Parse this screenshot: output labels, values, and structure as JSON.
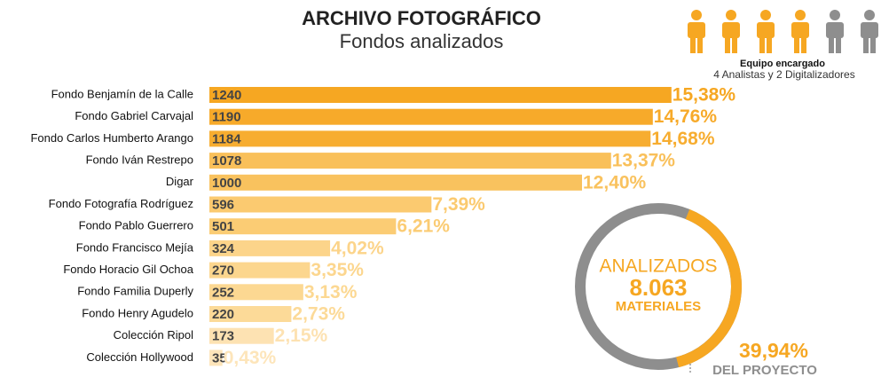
{
  "chart_data": {
    "type": "bar",
    "orientation": "horizontal",
    "title": "ARCHIVO FOTOGRÁFICO",
    "subtitle": "Fondos analizados",
    "categories": [
      "Fondo Benjamín de la Calle",
      "Fondo Gabriel Carvajal",
      "Fondo Carlos Humberto Arango",
      "Fondo Iván Restrepo",
      "Digar",
      "Fondo Fotografía Rodríguez",
      "Fondo Pablo Guerrero",
      "Fondo Francisco Mejía",
      "Fondo Horacio Gil Ochoa",
      "Fondo Familia Duperly",
      "Fondo Henry Agudelo",
      "Colección Ripol",
      "Colección Hollywood"
    ],
    "values": [
      1240,
      1190,
      1184,
      1078,
      1000,
      596,
      501,
      324,
      270,
      252,
      220,
      173,
      35
    ],
    "share_labels": [
      "15,38%",
      "14,76%",
      "14,68%",
      "13,37%",
      "12,40%",
      "7,39%",
      "6,21%",
      "4,02%",
      "3,35%",
      "3,13%",
      "2,73%",
      "2,15%",
      "0,43%"
    ],
    "colors": [
      "#f6a722",
      "#f7aa2a",
      "#f7ad30",
      "#f9c05a",
      "#f9c25e",
      "#fbca70",
      "#fbcc74",
      "#fcd48a",
      "#fcd68e",
      "#fcd892",
      "#fcda98",
      "#fde2b2",
      "#fde5ba"
    ],
    "ring": {
      "label": "ANALIZADOS",
      "total_label": "8.063",
      "unit": "MATERIALES",
      "share": 39.94,
      "share_label": "39,94%",
      "share_caption": "DEL PROYECTO"
    },
    "team": {
      "title": "Equipo encargado",
      "caption": "4 Analistas y 2 Digitalizadores",
      "analysts": 4,
      "digitizers": 2
    }
  }
}
